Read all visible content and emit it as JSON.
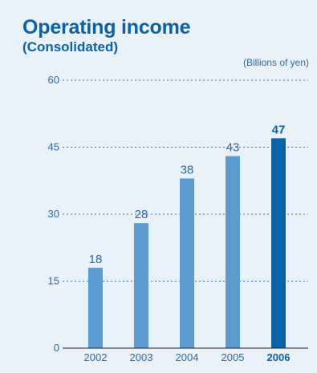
{
  "chart_data": {
    "type": "bar",
    "title": "Operating income",
    "subtitle": "(Consolidated)",
    "unit_label": "(Billions of yen)",
    "categories": [
      "2002",
      "2003",
      "2004",
      "2005",
      "2006"
    ],
    "values": [
      18,
      28,
      38,
      43,
      47
    ],
    "highlight_index": 4,
    "ylim": [
      0,
      60
    ],
    "yticks": [
      0,
      15,
      30,
      45,
      60
    ],
    "grid": true,
    "grid_style": "dashed",
    "legend": "none"
  },
  "colors": {
    "background": "#e9f1f9",
    "bar": "#5c9bd0",
    "bar_highlight": "#0b62a7",
    "title": "#0b62a7",
    "text": "#2d6aa8",
    "grid": "#3a78b5",
    "axis": "#222222"
  }
}
